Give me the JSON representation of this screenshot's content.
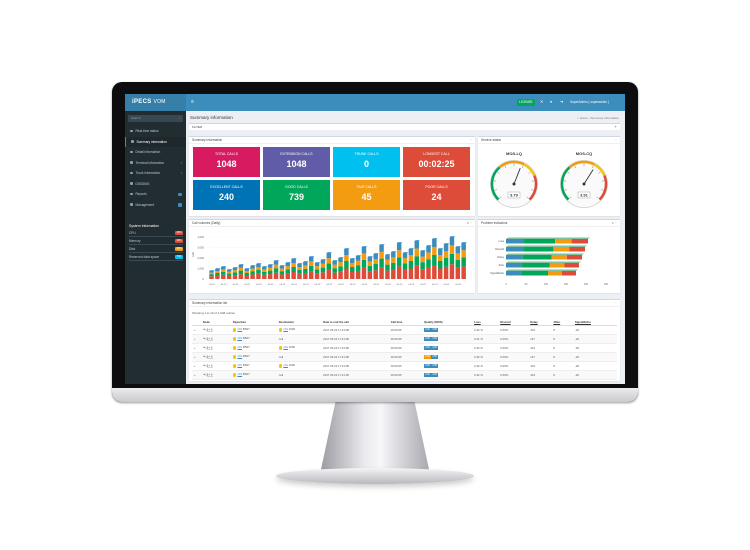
{
  "app": {
    "logo": "iPECS",
    "logo_suffix": "VOM",
    "license_label": "LICENSE",
    "user_label": "SuperAdmin ( superadmin )"
  },
  "sidebar": {
    "search_placeholder": "Search",
    "items": [
      {
        "label": "Real-time status",
        "active": false,
        "arrow": false,
        "pill": false
      },
      {
        "label": "Summary information",
        "active": true,
        "arrow": false,
        "pill": false
      },
      {
        "label": "Detail information",
        "active": false,
        "arrow": false,
        "pill": false
      },
      {
        "label": "Terminal information",
        "active": false,
        "arrow": true,
        "pill": false
      },
      {
        "label": "Trunk information",
        "active": false,
        "arrow": true,
        "pill": false
      },
      {
        "label": "DID/DNIS",
        "active": false,
        "arrow": false,
        "pill": false
      },
      {
        "label": "Reports",
        "active": false,
        "arrow": false,
        "pill": true
      },
      {
        "label": "Management",
        "active": false,
        "arrow": false,
        "pill": true
      }
    ],
    "system_information": {
      "title": "System Information",
      "rows": [
        {
          "label": "CPU",
          "percent": "26%",
          "color": "#dd4b39"
        },
        {
          "label": "Memory",
          "percent": "40%",
          "color": "#dd4b39"
        },
        {
          "label": "Disk",
          "percent": "30%",
          "color": "#f39c12"
        },
        {
          "label": "Reserved data space",
          "percent": "5%",
          "color": "#00c0ef"
        }
      ]
    }
  },
  "page": {
    "title": "Summary information",
    "breadcrumb": "⌂ Home › Summary information",
    "filter_label": "FILTER"
  },
  "summary_box": {
    "title": "Summary information",
    "tiles": [
      {
        "label": "TOTAL CALLS",
        "value": "1048",
        "color": "#d81b60"
      },
      {
        "label": "EXTENSION CALLS",
        "value": "1048",
        "color": "#605ca8"
      },
      {
        "label": "TRUNK CALLS",
        "value": "0",
        "color": "#00c0ef"
      },
      {
        "label": "LONGEST CALL",
        "value": "00:02:25",
        "color": "#dd4b39"
      },
      {
        "label": "EXCELLENT CALLS",
        "value": "240",
        "color": "#0073b7"
      },
      {
        "label": "GOOD CALLS",
        "value": "739",
        "color": "#00a65a"
      },
      {
        "label": "FAIR CALLS",
        "value": "45",
        "color": "#f39c12"
      },
      {
        "label": "POOR CALLS",
        "value": "24",
        "color": "#dd4b39"
      }
    ]
  },
  "service_status": {
    "title": "Service status",
    "gauges": [
      {
        "label": "MOS-LQ",
        "value": "3.79",
        "fraction": 0.58
      },
      {
        "label": "MOS-CQ",
        "value": "3.91",
        "fraction": 0.62
      }
    ]
  },
  "call_volume": {
    "title": "Call volumes (Daily)",
    "ylabel": "calls",
    "yticks": [
      "4,000",
      "3,000",
      "2,000",
      "1,000",
      "0"
    ],
    "xlabel_template": "04-23",
    "series_colors": [
      "#dd4b39",
      "#00a65a",
      "#f39c12",
      "#3c8dbc"
    ]
  },
  "problem_indicators": {
    "title": "Problem indicators",
    "categories": [
      "Loss",
      "Discard",
      "Delay",
      "Jitter",
      "Signal/Echo"
    ],
    "xticks": [
      "0",
      "50",
      "100",
      "150",
      "200",
      "250"
    ]
  },
  "summary_list": {
    "title": "Summary information list",
    "showing_text": "Showing 1 to 10 of 1,048 entries",
    "columns": [
      "Node",
      "Departure",
      "Destination",
      "Date to end the call",
      "Call time",
      "Quality (MOS)",
      "Loss",
      "Discard",
      "Delay",
      "Jitter",
      "Signal/Echo"
    ],
    "rows": [
      {
        "node": "ᄇ테스트",
        "dep": "101 BS07",
        "dest": "101 1000",
        "date": "2017.06.23 17:21:08",
        "time": "00:00:05",
        "q1": "4.20",
        "q2": "4.58",
        "loss": "0.32 %",
        "discard": "0.00%",
        "delay": "104",
        "jitter": "8",
        "signal": "-20"
      },
      {
        "node": "ᄇ테스트",
        "dep": "101 BS07",
        "dest": "null",
        "date": "2017.06.23 17:21:08",
        "time": "00:00:05",
        "q1": "4.26",
        "q2": "4.05",
        "loss": "0.31 %",
        "discard": "0.00%",
        "delay": "127",
        "jitter": "8",
        "signal": "-20"
      },
      {
        "node": "ᄇ테스트",
        "dep": "101 BS07",
        "dest": "101 1000",
        "date": "2017.06.23 17:21:08",
        "time": "00:00:05",
        "q1": "4.20",
        "q2": "4.20",
        "loss": "0.32 %",
        "discard": "0.00%",
        "delay": "104",
        "jitter": "8",
        "signal": "-20"
      },
      {
        "node": "ᄇ테스트",
        "dep": "101 BS07",
        "dest": "null",
        "date": "2017.06.23 17:21:08",
        "time": "00:00:05",
        "q1": "3.32",
        "q2": "4.58",
        "loss": "0.32 %",
        "discard": "0.00%",
        "delay": "127",
        "jitter": "8",
        "signal": "-20"
      },
      {
        "node": "ᄇ테스트",
        "dep": "101 BS07",
        "dest": "101 1000",
        "date": "2017.06.23 17:21:08",
        "time": "00:00:05",
        "q1": "4.20",
        "q2": "4.58",
        "loss": "0.32 %",
        "discard": "0.00%",
        "delay": "104",
        "jitter": "8",
        "signal": "-20"
      },
      {
        "node": "ᄇ테스트",
        "dep": "101 BS07",
        "dest": "null",
        "date": "2017.06.23 17:21:08",
        "time": "00:00:05",
        "q1": "4.20",
        "q2": "4.20",
        "loss": "0.32 %",
        "discard": "0.00%",
        "delay": "104",
        "jitter": "8",
        "signal": "-20"
      }
    ]
  }
}
